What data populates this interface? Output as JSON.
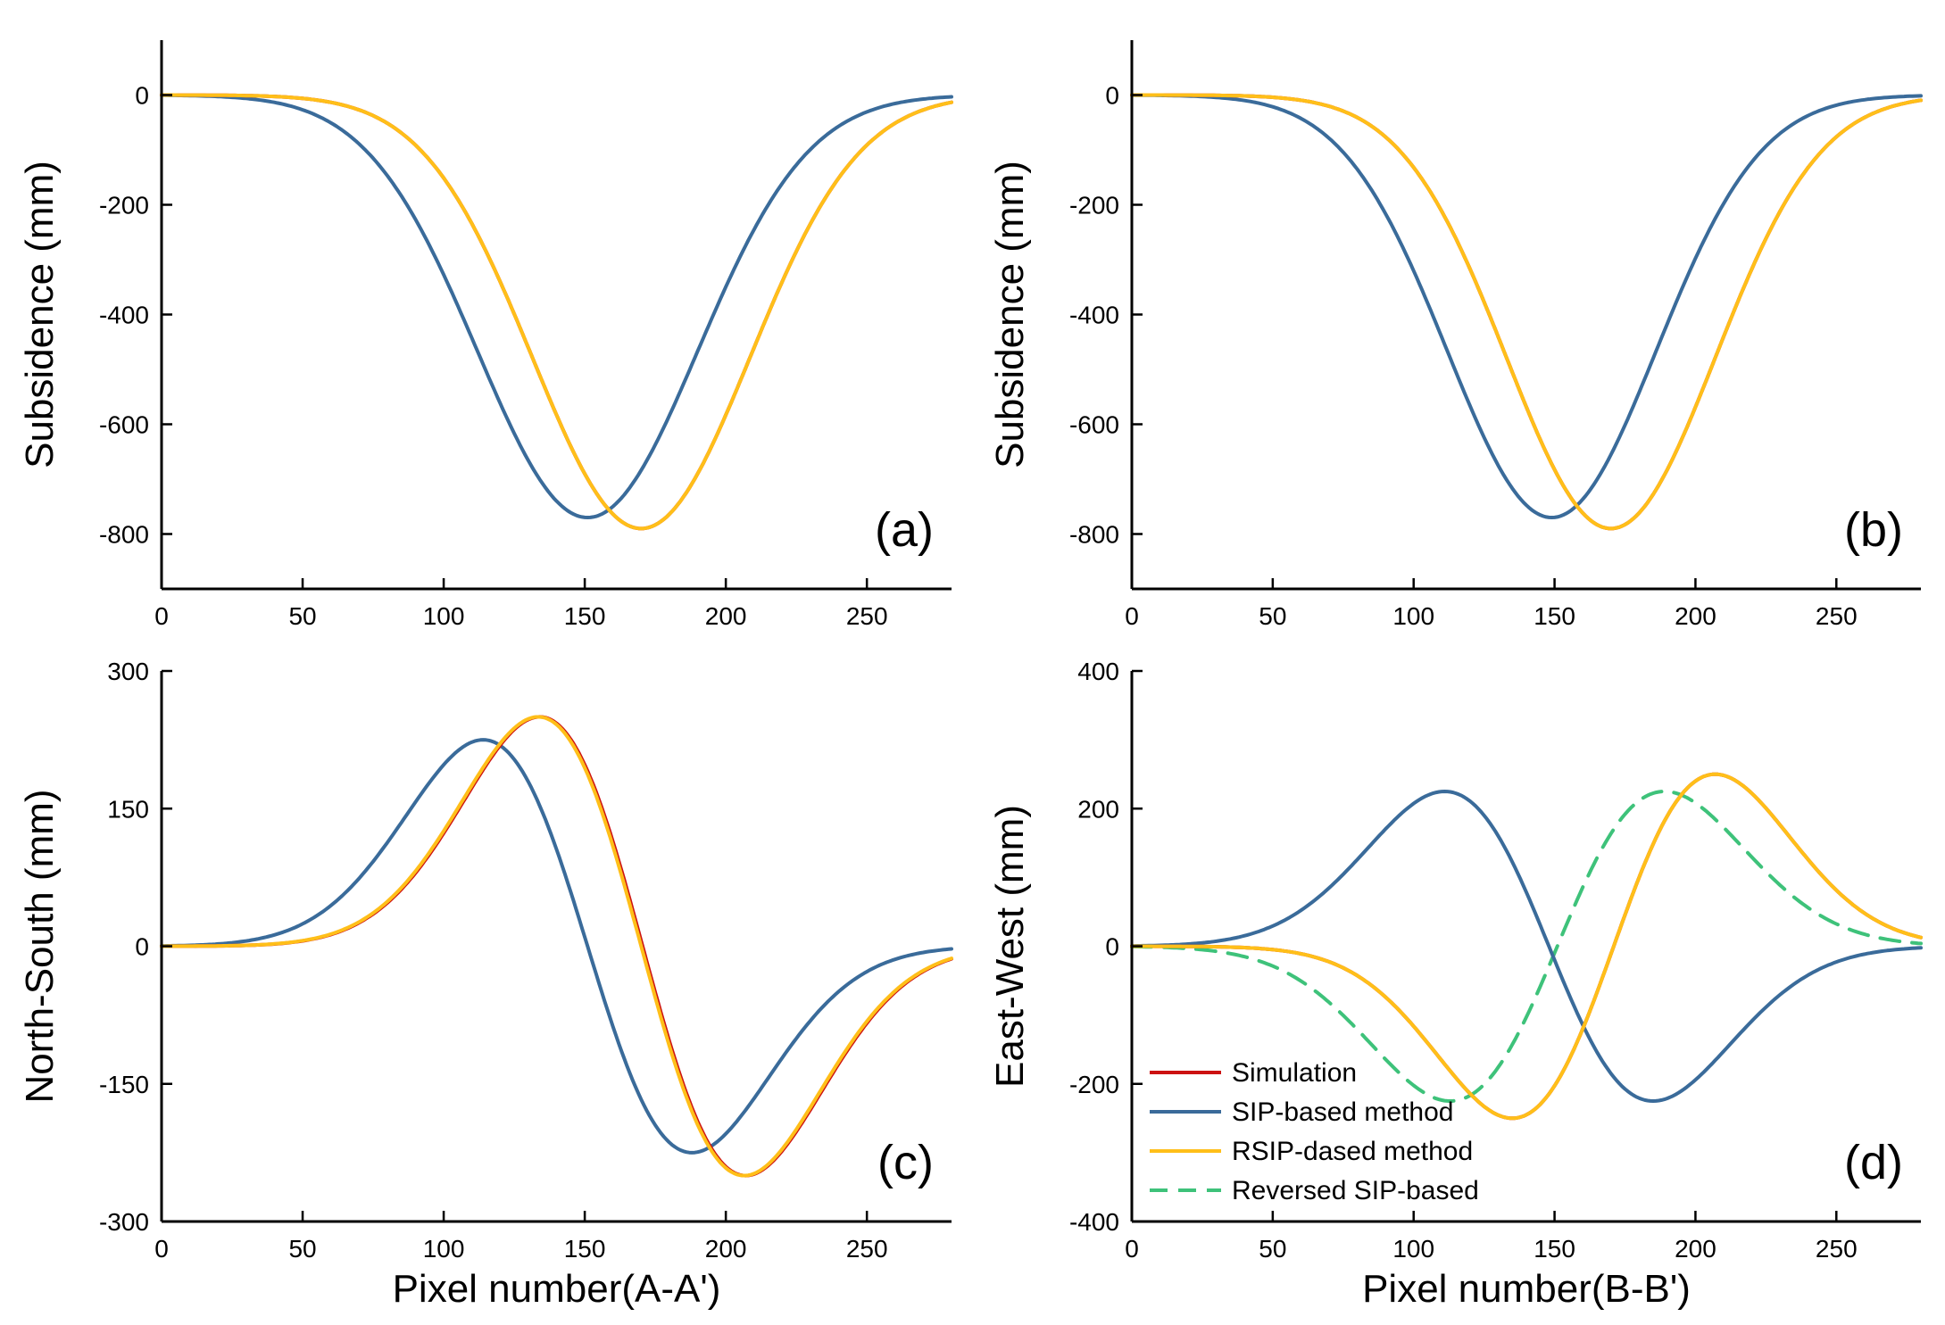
{
  "colors": {
    "simulation": "#cc1111",
    "sip": "#3a6b9a",
    "rsip": "#ffbf19",
    "reversed": "#3ec27a"
  },
  "legend": {
    "items": [
      {
        "key": "simulation",
        "label": "Simulation",
        "dashed": false
      },
      {
        "key": "sip",
        "label": "SIP-based method",
        "dashed": false
      },
      {
        "key": "rsip",
        "label": "RSIP-dased method",
        "dashed": false
      },
      {
        "key": "reversed",
        "label": "Reversed SIP-based",
        "dashed": true
      }
    ]
  },
  "chart_data": [
    {
      "id": "a",
      "panel_label": "(a)",
      "type": "line",
      "xlabel": "",
      "ylabel": "Subsidence (mm)",
      "xlim": [
        0,
        280
      ],
      "ylim": [
        -900,
        100
      ],
      "xticks": [
        0,
        50,
        100,
        150,
        200,
        250
      ],
      "yticks": [
        0,
        -200,
        -400,
        -600,
        -800
      ],
      "series": [
        {
          "key": "sip",
          "name": "SIP-based method",
          "model": "gauss",
          "A": -770,
          "mu": 151,
          "sigma": 39
        },
        {
          "key": "simulation",
          "name": "Simulation",
          "model": "gauss",
          "A": -790,
          "mu": 170,
          "sigma": 38.5
        },
        {
          "key": "rsip",
          "name": "RSIP-dased method",
          "model": "gauss",
          "A": -790,
          "mu": 170,
          "sigma": 38.5
        }
      ]
    },
    {
      "id": "b",
      "panel_label": "(b)",
      "type": "line",
      "xlabel": "",
      "ylabel": "Subsidence (mm)",
      "xlim": [
        0,
        280
      ],
      "ylim": [
        -900,
        100
      ],
      "xticks": [
        0,
        50,
        100,
        150,
        200,
        250
      ],
      "yticks": [
        0,
        -200,
        -400,
        -600,
        -800
      ],
      "series": [
        {
          "key": "sip",
          "name": "SIP-based method",
          "model": "gauss",
          "A": -770,
          "mu": 149,
          "sigma": 37
        },
        {
          "key": "simulation",
          "name": "Simulation",
          "model": "gauss",
          "A": -790,
          "mu": 170,
          "sigma": 37
        },
        {
          "key": "rsip",
          "name": "RSIP-dased method",
          "model": "gauss",
          "A": -790,
          "mu": 170,
          "sigma": 37
        }
      ]
    },
    {
      "id": "c",
      "panel_label": "(c)",
      "type": "line",
      "xlabel": "Pixel number(A-A')",
      "ylabel": "North-South (mm)",
      "xlim": [
        0,
        280
      ],
      "ylim": [
        -300,
        300
      ],
      "xticks": [
        0,
        50,
        100,
        150,
        200,
        250
      ],
      "yticks": [
        300,
        150,
        0,
        -150,
        -300
      ],
      "series": [
        {
          "key": "sip",
          "name": "SIP-based method",
          "model": "dgauss",
          "A": -225,
          "mu": 151,
          "sigma": 37
        },
        {
          "key": "simulation",
          "name": "Simulation",
          "model": "dgauss",
          "A": -250,
          "mu": 170.5,
          "sigma": 36.5
        },
        {
          "key": "rsip",
          "name": "RSIP-dased method",
          "model": "dgauss",
          "A": -250,
          "mu": 170,
          "sigma": 36.5
        }
      ]
    },
    {
      "id": "d",
      "panel_label": "(d)",
      "type": "line",
      "xlabel": "Pixel number(B-B')",
      "ylabel": "East-West (mm)",
      "xlim": [
        0,
        280
      ],
      "ylim": [
        -400,
        400
      ],
      "xticks": [
        0,
        50,
        100,
        150,
        200,
        250
      ],
      "yticks": [
        400,
        200,
        0,
        -200,
        -400
      ],
      "series": [
        {
          "key": "reversed",
          "name": "Reversed SIP-based",
          "model": "dgauss",
          "A": 225,
          "mu": 151,
          "sigma": 38,
          "dashed": true
        },
        {
          "key": "sip",
          "name": "SIP-based method",
          "model": "dgauss",
          "A": -225,
          "mu": 148,
          "sigma": 37
        },
        {
          "key": "simulation",
          "name": "Simulation",
          "model": "dgauss",
          "A": 250,
          "mu": 171,
          "sigma": 36
        },
        {
          "key": "rsip",
          "name": "RSIP-dased method",
          "model": "dgauss",
          "A": 250,
          "mu": 171,
          "sigma": 36
        }
      ]
    }
  ]
}
